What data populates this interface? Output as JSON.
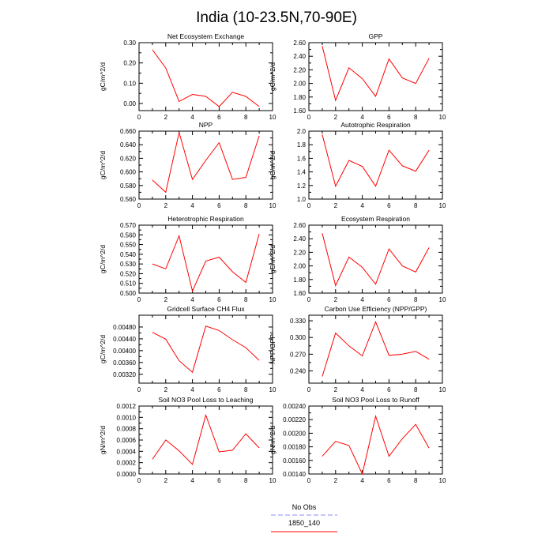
{
  "main_title": "India (10-23.5N,70-90E)",
  "legend": {
    "entries": [
      {
        "label": "No Obs",
        "color": "#8c8cff",
        "dash": true
      },
      {
        "label": "1850_140",
        "color": "#ff0000",
        "dash": false
      }
    ]
  },
  "chart_data": [
    {
      "type": "line",
      "title": "Net Ecosystem Exchange",
      "ylabel": "gC/m^2/d",
      "xlim": [
        0,
        10
      ],
      "xticks": [
        "0",
        "2",
        "4",
        "6",
        "8",
        "10"
      ],
      "ylim": [
        -0.035,
        0.3
      ],
      "yticks": [
        "0.00",
        "0.10",
        "0.20",
        "0.30"
      ],
      "ytick_values": [
        0,
        0.1,
        0.2,
        0.3
      ],
      "series": [
        {
          "x": [
            1,
            2,
            3,
            4,
            5,
            6,
            7,
            8,
            9
          ],
          "values": [
            0.265,
            0.175,
            0.01,
            0.045,
            0.035,
            -0.015,
            0.055,
            0.035,
            -0.015
          ]
        }
      ]
    },
    {
      "type": "line",
      "title": "GPP",
      "ylabel": "gC/m^2/d",
      "xlim": [
        0,
        10
      ],
      "xticks": [
        "0",
        "2",
        "4",
        "6",
        "8",
        "10"
      ],
      "ylim": [
        1.6,
        2.6
      ],
      "yticks": [
        "1.60",
        "1.80",
        "2.00",
        "2.20",
        "2.40",
        "2.60"
      ],
      "ytick_values": [
        1.6,
        1.8,
        2.0,
        2.2,
        2.4,
        2.6
      ],
      "series": [
        {
          "x": [
            1,
            2,
            3,
            4,
            5,
            6,
            7,
            8,
            9
          ],
          "values": [
            2.55,
            1.75,
            2.23,
            2.07,
            1.81,
            2.36,
            2.08,
            2.0,
            2.37
          ]
        }
      ]
    },
    {
      "type": "line",
      "title": "NPP",
      "ylabel": "gC/m^2/d",
      "xlim": [
        0,
        10
      ],
      "xticks": [
        "0",
        "2",
        "4",
        "6",
        "8",
        "10"
      ],
      "ylim": [
        0.56,
        0.66
      ],
      "yticks": [
        "0.560",
        "0.580",
        "0.600",
        "0.620",
        "0.640",
        "0.660"
      ],
      "ytick_values": [
        0.56,
        0.58,
        0.6,
        0.62,
        0.64,
        0.66
      ],
      "series": [
        {
          "x": [
            1,
            2,
            3,
            4,
            5,
            6,
            7,
            8,
            9
          ],
          "values": [
            0.588,
            0.57,
            0.658,
            0.589,
            0.617,
            0.643,
            0.589,
            0.592,
            0.653
          ]
        }
      ]
    },
    {
      "type": "line",
      "title": "Autotrophic Respiration",
      "ylabel": "gC/m^2/d",
      "xlim": [
        0,
        10
      ],
      "xticks": [
        "0",
        "2",
        "4",
        "6",
        "8",
        "10"
      ],
      "ylim": [
        1.0,
        2.0
      ],
      "yticks": [
        "1.0",
        "1.2",
        "1.4",
        "1.6",
        "1.8",
        "2.0"
      ],
      "ytick_values": [
        1.0,
        1.2,
        1.4,
        1.6,
        1.8,
        2.0
      ],
      "series": [
        {
          "x": [
            1,
            2,
            3,
            4,
            5,
            6,
            7,
            8,
            9
          ],
          "values": [
            1.95,
            1.19,
            1.57,
            1.48,
            1.19,
            1.72,
            1.49,
            1.41,
            1.72
          ]
        }
      ]
    },
    {
      "type": "line",
      "title": "Heterotrophic Respiration",
      "ylabel": "gC/m^2/d",
      "xlim": [
        0,
        10
      ],
      "xticks": [
        "0",
        "2",
        "4",
        "6",
        "8",
        "10"
      ],
      "ylim": [
        0.5,
        0.57
      ],
      "yticks": [
        "0.500",
        "0.510",
        "0.520",
        "0.530",
        "0.540",
        "0.550",
        "0.560",
        "0.570"
      ],
      "ytick_values": [
        0.5,
        0.51,
        0.52,
        0.53,
        0.54,
        0.55,
        0.56,
        0.57
      ],
      "series": [
        {
          "x": [
            1,
            2,
            3,
            4,
            5,
            6,
            7,
            8,
            9
          ],
          "values": [
            0.53,
            0.525,
            0.559,
            0.502,
            0.533,
            0.537,
            0.522,
            0.511,
            0.561
          ]
        }
      ]
    },
    {
      "type": "line",
      "title": "Ecosystem Respiration",
      "ylabel": "gC/m^2/d",
      "xlim": [
        0,
        10
      ],
      "xticks": [
        "0",
        "2",
        "4",
        "6",
        "8",
        "10"
      ],
      "ylim": [
        1.6,
        2.6
      ],
      "yticks": [
        "1.60",
        "1.80",
        "2.00",
        "2.20",
        "2.40",
        "2.60"
      ],
      "ytick_values": [
        1.6,
        1.8,
        2.0,
        2.2,
        2.4,
        2.6
      ],
      "series": [
        {
          "x": [
            1,
            2,
            3,
            4,
            5,
            6,
            7,
            8,
            9
          ],
          "values": [
            2.48,
            1.71,
            2.13,
            1.98,
            1.73,
            2.25,
            2.0,
            1.91,
            2.27
          ]
        }
      ]
    },
    {
      "type": "line",
      "title": "Gridcell Surface CH4 Flux",
      "ylabel": "gC/m^2/d",
      "xlim": [
        0,
        10
      ],
      "xticks": [
        "0",
        "2",
        "4",
        "6",
        "8",
        "10"
      ],
      "ylim": [
        0.0029,
        0.0052
      ],
      "yticks": [
        "0.00320",
        "0.00360",
        "0.00400",
        "0.00440",
        "0.00480"
      ],
      "ytick_values": [
        0.0032,
        0.0036,
        0.004,
        0.0044,
        0.0048
      ],
      "series": [
        {
          "x": [
            1,
            2,
            3,
            4,
            5,
            6,
            7,
            8,
            9
          ],
          "values": [
            0.00462,
            0.00439,
            0.00366,
            0.00327,
            0.00483,
            0.00468,
            0.00437,
            0.0041,
            0.00367
          ]
        }
      ]
    },
    {
      "type": "line",
      "title": "Carbon Use Efficiency (NPP/GPP)",
      "ylabel": "NPP/GPP",
      "xlim": [
        0,
        10
      ],
      "xticks": [
        "0",
        "2",
        "4",
        "6",
        "8",
        "10"
      ],
      "ylim": [
        0.218,
        0.34
      ],
      "yticks": [
        "0.240",
        "0.270",
        "0.300",
        "0.330"
      ],
      "ytick_values": [
        0.24,
        0.27,
        0.3,
        0.33
      ],
      "series": [
        {
          "x": [
            1,
            2,
            3,
            4,
            5,
            6,
            7,
            8,
            9
          ],
          "values": [
            0.23,
            0.308,
            0.285,
            0.267,
            0.328,
            0.268,
            0.27,
            0.275,
            0.261
          ]
        }
      ]
    },
    {
      "type": "line",
      "title": "Soil NO3 Pool Loss to Leaching",
      "ylabel": "gN/m^2/d",
      "xlim": [
        0,
        10
      ],
      "xticks": [
        "0",
        "2",
        "4",
        "6",
        "8",
        "10"
      ],
      "ylim": [
        0,
        0.0012
      ],
      "yticks": [
        "0.0000",
        "0.0002",
        "0.0004",
        "0.0006",
        "0.0008",
        "0.0010",
        "0.0012"
      ],
      "ytick_values": [
        0,
        0.0002,
        0.0004,
        0.0006,
        0.0008,
        0.001,
        0.0012
      ],
      "series": [
        {
          "x": [
            1,
            2,
            3,
            4,
            5,
            6,
            7,
            8,
            9
          ],
          "values": [
            0.00026,
            0.0006,
            0.00041,
            0.00017,
            0.00104,
            0.00039,
            0.00042,
            0.00071,
            0.00046
          ]
        }
      ]
    },
    {
      "type": "line",
      "title": "Soil NO3 Pool Loss to Runoff",
      "ylabel": "gN/m^2/d",
      "xlim": [
        0,
        10
      ],
      "xticks": [
        "0",
        "2",
        "4",
        "6",
        "8",
        "10"
      ],
      "ylim": [
        0.0014,
        0.0024
      ],
      "yticks": [
        "0.00140",
        "0.00160",
        "0.00180",
        "0.00200",
        "0.00220",
        "0.00240"
      ],
      "ytick_values": [
        0.0014,
        0.0016,
        0.0018,
        0.002,
        0.0022,
        0.0024
      ],
      "series": [
        {
          "x": [
            1,
            2,
            3,
            4,
            5,
            6,
            7,
            8,
            9
          ],
          "values": [
            0.00166,
            0.00188,
            0.00182,
            0.0014,
            0.00225,
            0.00166,
            0.00192,
            0.00213,
            0.00178
          ]
        }
      ]
    }
  ]
}
